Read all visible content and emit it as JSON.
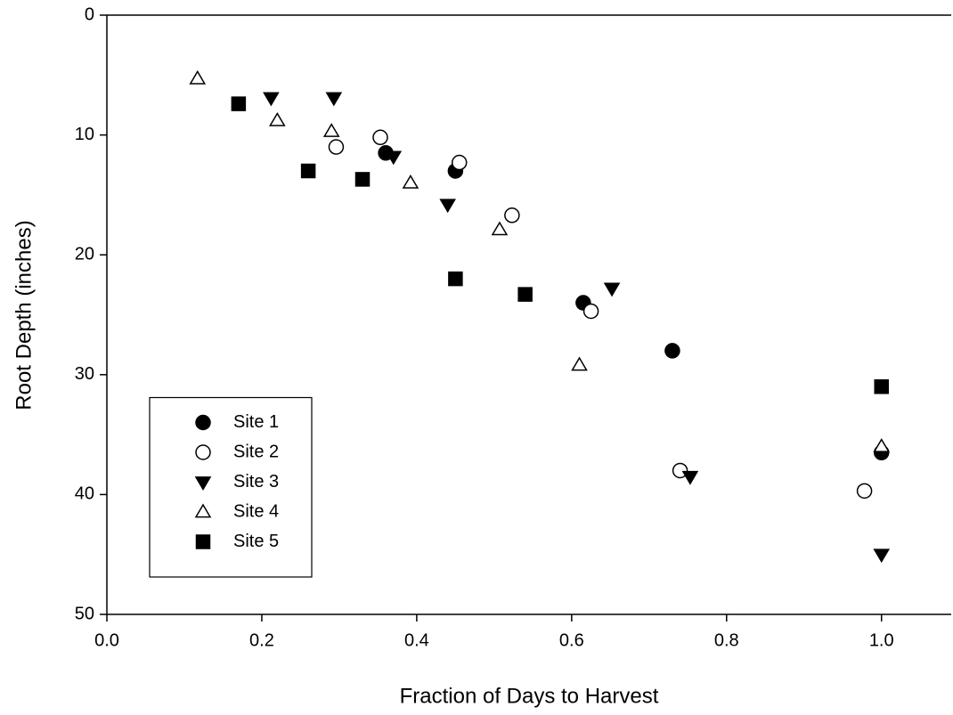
{
  "chart_data": {
    "type": "scatter",
    "x_label": "Fraction of Days to Harvest",
    "y_label": "Root Depth (inches)",
    "xlim": [
      0,
      1.09
    ],
    "ylim": [
      0,
      50
    ],
    "y_inverted": true,
    "xticks": [
      {
        "value": 0,
        "label": "0.0"
      },
      {
        "value": 0.2,
        "label": "0.2"
      },
      {
        "value": 0.4,
        "label": "0.4"
      },
      {
        "value": 0.6,
        "label": "0.6"
      },
      {
        "value": 0.8,
        "label": "0.8"
      },
      {
        "value": 1,
        "label": "1.0"
      }
    ],
    "yticks": [
      0,
      10,
      20,
      30,
      40,
      50
    ],
    "grid": false,
    "legend": "lower left",
    "series": [
      {
        "name": "Site 1",
        "color": "#000000",
        "marker": "circle",
        "filled": true,
        "x": [
          0.36,
          0.45,
          0.615,
          0.73,
          1.0
        ],
        "values": [
          11.5,
          13.0,
          24.0,
          28.0,
          36.5
        ]
      },
      {
        "name": "Site 2",
        "color": "#000000",
        "marker": "circle",
        "filled": false,
        "x": [
          0.296,
          0.353,
          0.455,
          0.523,
          0.625,
          0.74,
          0.978
        ],
        "values": [
          11.0,
          10.2,
          12.3,
          16.7,
          24.7,
          38.0,
          39.7
        ]
      },
      {
        "name": "Site 3",
        "color": "#000000",
        "marker": "triangle-down",
        "filled": true,
        "x": [
          0.212,
          0.293,
          0.37,
          0.44,
          0.652,
          0.753,
          1.0
        ],
        "values": [
          6.9,
          6.9,
          11.8,
          15.8,
          22.8,
          38.5,
          45.0
        ]
      },
      {
        "name": "Site 4",
        "color": "#000000",
        "marker": "triangle-up",
        "filled": false,
        "x": [
          0.117,
          0.22,
          0.29,
          0.392,
          0.507,
          0.61,
          1.0
        ],
        "values": [
          5.3,
          8.8,
          9.7,
          14.0,
          17.9,
          29.2,
          36.0
        ]
      },
      {
        "name": "Site 5",
        "color": "#000000",
        "marker": "square",
        "filled": true,
        "x": [
          0.17,
          0.26,
          0.33,
          0.45,
          0.54,
          1.0
        ],
        "values": [
          7.4,
          13.0,
          13.7,
          22.0,
          23.3,
          31.0
        ]
      }
    ]
  }
}
